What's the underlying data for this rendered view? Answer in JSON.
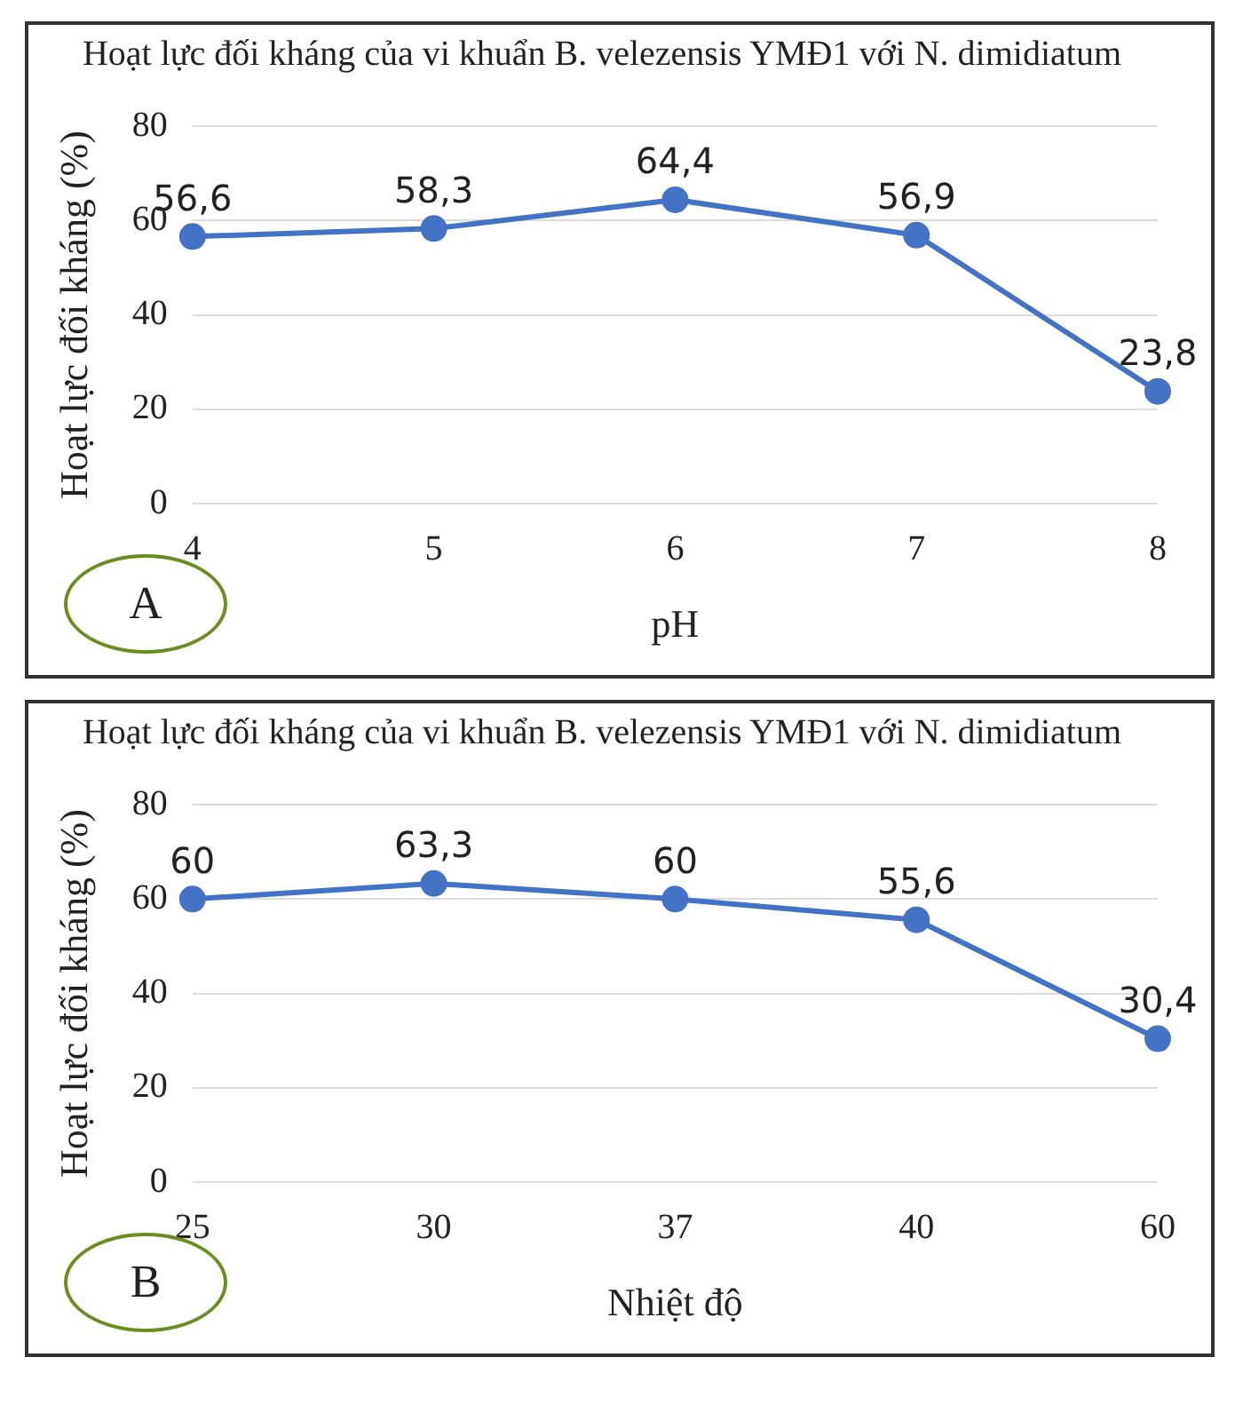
{
  "chart_data": [
    {
      "type": "line",
      "title": "Hoạt lực đối kháng của vi khuẩn B. velezensis YMĐ1 với N. dimidiatum",
      "xlabel": "pH",
      "ylabel": "Hoạt lực đối kháng (%)",
      "categories": [
        "4",
        "5",
        "6",
        "7",
        "8"
      ],
      "series": [
        {
          "color": "#4472c4",
          "values": [
            56.6,
            58.3,
            64.4,
            56.9,
            23.8
          ],
          "value_labels": [
            "56,6",
            "58,3",
            "64,4",
            "56,9",
            "23,8"
          ]
        }
      ],
      "ylim": [
        0,
        80
      ],
      "yticks": [
        0,
        20,
        40,
        60,
        80
      ],
      "grid": "y",
      "marker": "circle",
      "annotations": [
        "A"
      ]
    },
    {
      "type": "line",
      "title": "Hoạt lực đối kháng của vi khuẩn B. velezensis YMĐ1 với N. dimidiatum",
      "xlabel": "Nhiệt độ",
      "ylabel": "Hoạt lực đối kháng (%)",
      "categories": [
        "25",
        "30",
        "37",
        "40",
        "60"
      ],
      "series": [
        {
          "color": "#4472c4",
          "values": [
            60,
            63.3,
            60,
            55.6,
            30.4
          ],
          "value_labels": [
            "60",
            "63,3",
            "60",
            "55,6",
            "30,4"
          ]
        }
      ],
      "ylim": [
        0,
        80
      ],
      "yticks": [
        0,
        20,
        40,
        60,
        80
      ],
      "grid": "y",
      "marker": "circle",
      "annotations": [
        "B"
      ]
    }
  ]
}
